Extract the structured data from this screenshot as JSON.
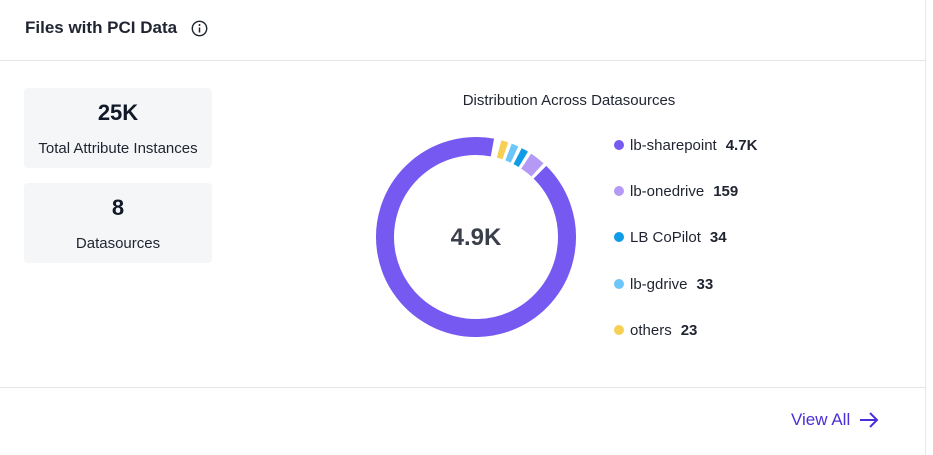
{
  "header": {
    "title": "Files with PCI Data"
  },
  "stats": [
    {
      "value": "25K",
      "label": "Total Attribute Instances"
    },
    {
      "value": "8",
      "label": "Datasources"
    }
  ],
  "chart": {
    "title": "Distribution Across Datasources",
    "center_value": "4.9K"
  },
  "chart_data": {
    "type": "pie",
    "title": "Distribution Across Datasources",
    "categories": [
      "lb-sharepoint",
      "lb-onedrive",
      "LB CoPilot",
      "lb-gdrive",
      "others"
    ],
    "values": [
      4700,
      159,
      34,
      33,
      23
    ],
    "value_labels": [
      "4.7K",
      "159",
      "34",
      "33",
      "23"
    ],
    "colors": [
      "#7659f0",
      "#b49af5",
      "#0f9be6",
      "#6cc6f7",
      "#f7cf55"
    ],
    "center_label": "4.9K",
    "legend": "right"
  },
  "footer": {
    "view_all_label": "View All"
  },
  "icons": {
    "info": "info-icon",
    "arrow": "arrow-right-icon"
  }
}
